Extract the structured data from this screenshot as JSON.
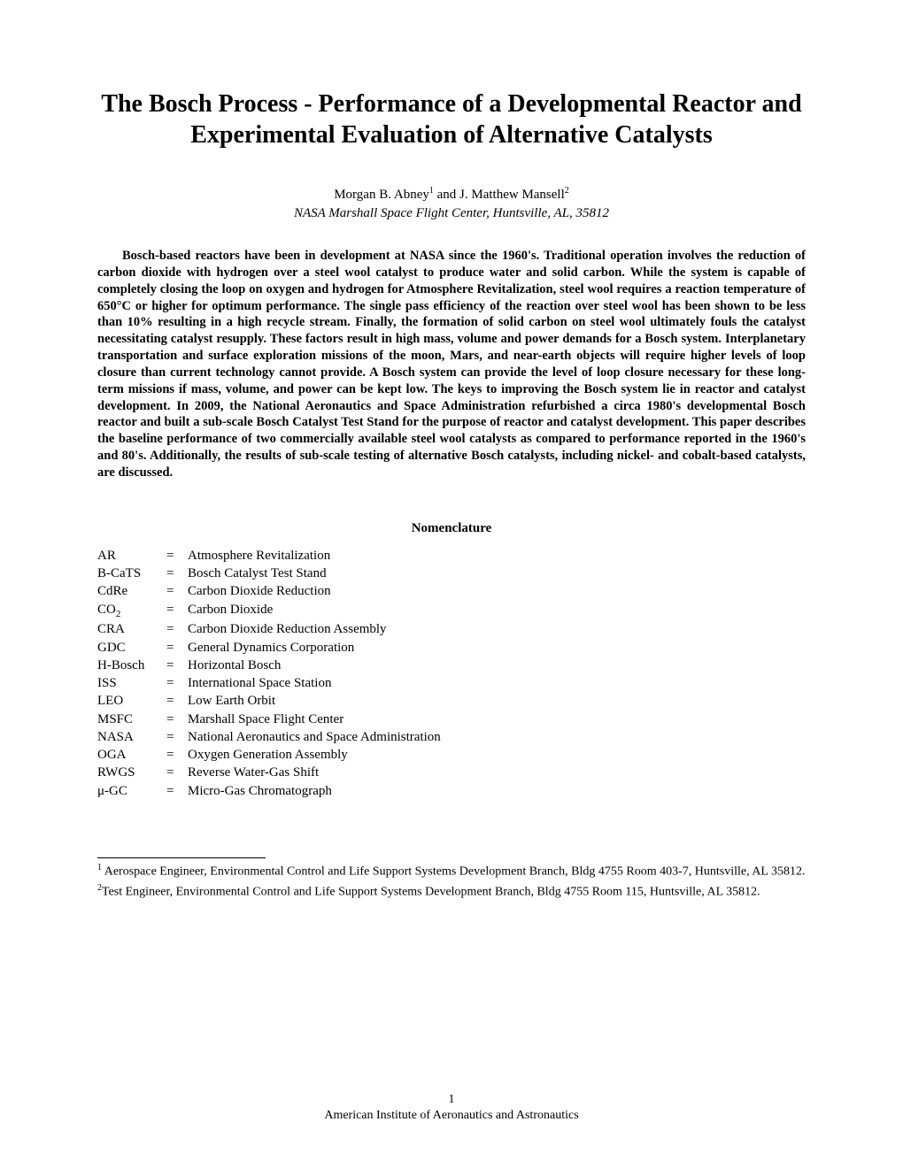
{
  "title": "The Bosch Process - Performance of a Developmental Reactor and Experimental Evaluation of Alternative Catalysts",
  "authors": {
    "author1_name": "Morgan B. Abney",
    "author1_sup": "1",
    "and": " and ",
    "author2_name": "J. Matthew Mansell",
    "author2_sup": "2"
  },
  "affiliation": "NASA Marshall Space Flight Center, Huntsville, AL, 35812",
  "abstract": "Bosch-based reactors have been in development at NASA since the 1960's. Traditional operation involves the reduction of carbon dioxide with hydrogen over a steel wool catalyst to produce water and solid carbon. While the system is capable of completely closing the loop on oxygen and hydrogen for Atmosphere Revitalization, steel wool requires a reaction temperature of 650°C or higher for optimum performance. The single pass efficiency of the reaction over steel wool has been shown to be less than 10% resulting in a high recycle stream. Finally, the formation of solid carbon on steel wool ultimately fouls the catalyst necessitating catalyst resupply. These factors result in high mass, volume and power demands for a Bosch system. Interplanetary transportation and surface exploration missions of the moon, Mars, and near-earth objects will require higher levels of loop closure than current technology cannot provide. A Bosch system can provide the level of loop closure necessary for these long-term missions if mass, volume, and power can be kept low. The keys to improving the Bosch system lie in reactor and catalyst development. In 2009, the National Aeronautics and Space Administration refurbished a circa 1980's developmental Bosch reactor and built a sub-scale Bosch Catalyst Test Stand for the purpose of reactor and catalyst development. This paper describes the baseline performance of two commercially available steel wool catalysts as compared to performance reported in the 1960's and 80's. Additionally, the results of sub-scale testing of alternative Bosch catalysts, including nickel- and cobalt-based catalysts, are discussed.",
  "nomenclature_heading": "Nomenclature",
  "nomenclature": [
    {
      "abbr": "AR",
      "def": "Atmosphere Revitalization"
    },
    {
      "abbr": "B-CaTS",
      "def": "Bosch Catalyst Test Stand"
    },
    {
      "abbr": "CdRe",
      "def": "Carbon Dioxide Reduction"
    },
    {
      "abbr_pre": "CO",
      "abbr_sub": "2",
      "def": "Carbon Dioxide"
    },
    {
      "abbr": "CRA",
      "def": "Carbon Dioxide Reduction Assembly"
    },
    {
      "abbr": "GDC",
      "def": "General Dynamics Corporation"
    },
    {
      "abbr": "H-Bosch",
      "def": "Horizontal Bosch"
    },
    {
      "abbr": "ISS",
      "def": "International Space Station"
    },
    {
      "abbr": "LEO",
      "def": "Low Earth Orbit"
    },
    {
      "abbr": "MSFC",
      "def": "Marshall Space Flight Center"
    },
    {
      "abbr": "NASA",
      "def": "National Aeronautics and Space Administration"
    },
    {
      "abbr": "OGA",
      "def": "Oxygen Generation Assembly"
    },
    {
      "abbr": "RWGS",
      "def": "Reverse Water-Gas Shift"
    },
    {
      "abbr": "μ-GC",
      "def": "Micro-Gas Chromatograph"
    }
  ],
  "footnotes": [
    {
      "sup": "1",
      "text": " Aerospace Engineer, Environmental Control and Life Support Systems Development Branch, Bldg 4755 Room 403-7, Huntsville, AL 35812."
    },
    {
      "sup": "2",
      "text": "Test Engineer, Environmental Control and Life Support Systems Development Branch, Bldg 4755 Room 115, Huntsville, AL 35812."
    }
  ],
  "page_number": "1",
  "footer_org": "American Institute of Aeronautics and Astronautics"
}
